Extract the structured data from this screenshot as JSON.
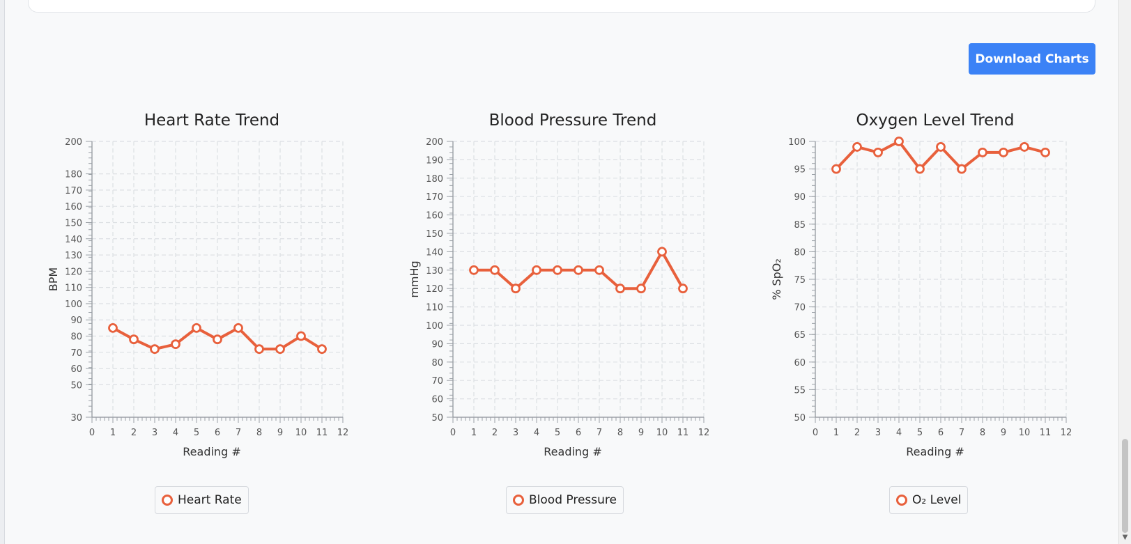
{
  "toolbar": {
    "download_label": "Download Charts"
  },
  "colors": {
    "series": "#e8603c",
    "button": "#3b82f6",
    "grid": "#dddddd"
  },
  "charts": [
    {
      "type": "line",
      "title": "Heart Rate Trend",
      "xlabel": "Reading #",
      "ylabel": "BPM",
      "xlim": [
        0,
        12
      ],
      "ylim": [
        30,
        200
      ],
      "xticks": [
        0,
        1,
        2,
        3,
        4,
        5,
        6,
        7,
        8,
        9,
        10,
        11,
        12
      ],
      "yticks": [
        30,
        50,
        60,
        70,
        80,
        90,
        100,
        110,
        120,
        130,
        140,
        150,
        160,
        170,
        180,
        200
      ],
      "legend": "Heart Rate",
      "x": [
        1,
        2,
        3,
        4,
        5,
        6,
        7,
        8,
        9,
        10,
        11
      ],
      "y": [
        85,
        78,
        72,
        75,
        85,
        78,
        85,
        72,
        72,
        80,
        72
      ]
    },
    {
      "type": "line",
      "title": "Blood Pressure Trend",
      "xlabel": "Reading #",
      "ylabel": "mmHg",
      "xlim": [
        0,
        12
      ],
      "ylim": [
        50,
        200
      ],
      "xticks": [
        0,
        1,
        2,
        3,
        4,
        5,
        6,
        7,
        8,
        9,
        10,
        11,
        12
      ],
      "yticks": [
        50,
        60,
        70,
        80,
        90,
        100,
        110,
        120,
        130,
        140,
        150,
        160,
        170,
        180,
        190,
        200
      ],
      "legend": "Blood Pressure",
      "x": [
        1,
        2,
        3,
        4,
        5,
        6,
        7,
        8,
        9,
        10,
        11
      ],
      "y": [
        130,
        130,
        120,
        130,
        130,
        130,
        130,
        120,
        120,
        140,
        120
      ]
    },
    {
      "type": "line",
      "title": "Oxygen Level Trend",
      "xlabel": "Reading #",
      "ylabel": "% SpO₂",
      "xlim": [
        0,
        12
      ],
      "ylim": [
        50,
        100
      ],
      "xticks": [
        0,
        1,
        2,
        3,
        4,
        5,
        6,
        7,
        8,
        9,
        10,
        11,
        12
      ],
      "yticks": [
        50,
        55,
        60,
        65,
        70,
        75,
        80,
        85,
        90,
        95,
        100
      ],
      "legend": "O₂ Level",
      "x": [
        1,
        2,
        3,
        4,
        5,
        6,
        7,
        8,
        9,
        10,
        11
      ],
      "y": [
        95,
        99,
        98,
        100,
        95,
        99,
        95,
        98,
        98,
        99,
        98
      ]
    }
  ],
  "chart_data": [
    {
      "type": "line",
      "title": "Heart Rate Trend",
      "xlabel": "Reading #",
      "ylabel": "BPM",
      "xlim": [
        0,
        12
      ],
      "ylim": [
        30,
        200
      ],
      "series": [
        {
          "name": "Heart Rate",
          "x": [
            1,
            2,
            3,
            4,
            5,
            6,
            7,
            8,
            9,
            10,
            11
          ],
          "values": [
            85,
            78,
            72,
            75,
            85,
            78,
            85,
            72,
            72,
            80,
            72
          ]
        }
      ],
      "grid": true,
      "legend_position": "bottom"
    },
    {
      "type": "line",
      "title": "Blood Pressure Trend",
      "xlabel": "Reading #",
      "ylabel": "mmHg",
      "xlim": [
        0,
        12
      ],
      "ylim": [
        50,
        200
      ],
      "series": [
        {
          "name": "Blood Pressure",
          "x": [
            1,
            2,
            3,
            4,
            5,
            6,
            7,
            8,
            9,
            10,
            11
          ],
          "values": [
            130,
            130,
            120,
            130,
            130,
            130,
            130,
            120,
            120,
            140,
            120
          ]
        }
      ],
      "grid": true,
      "legend_position": "bottom"
    },
    {
      "type": "line",
      "title": "Oxygen Level Trend",
      "xlabel": "Reading #",
      "ylabel": "% SpO₂",
      "xlim": [
        0,
        12
      ],
      "ylim": [
        50,
        100
      ],
      "series": [
        {
          "name": "O₂ Level",
          "x": [
            1,
            2,
            3,
            4,
            5,
            6,
            7,
            8,
            9,
            10,
            11
          ],
          "values": [
            95,
            99,
            98,
            100,
            95,
            99,
            95,
            98,
            98,
            99,
            98
          ]
        }
      ],
      "grid": true,
      "legend_position": "bottom"
    }
  ]
}
